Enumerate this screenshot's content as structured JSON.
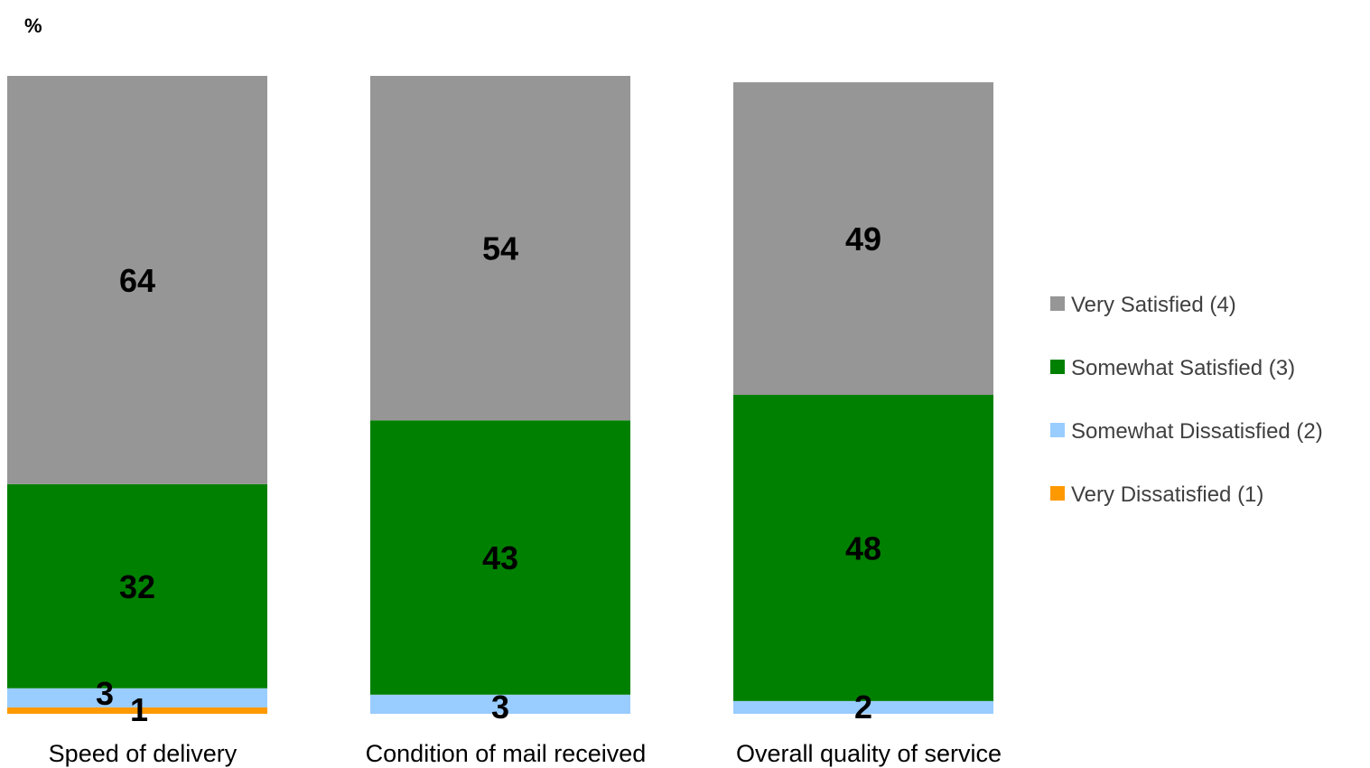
{
  "chart_data": {
    "type": "bar",
    "stacked": true,
    "unit_label": "%",
    "categories": [
      "Speed of delivery",
      "Condition of mail received",
      "Overall quality of service"
    ],
    "series": [
      {
        "name": "Very Dissatisfied (1)",
        "color": "#FF9900",
        "values": [
          1,
          0,
          0
        ]
      },
      {
        "name": "Somewhat Dissatisfied (2)",
        "color": "#99CCFF",
        "values": [
          3,
          3,
          2
        ]
      },
      {
        "name": "Somewhat Satisfied (3)",
        "color": "#008000",
        "values": [
          32,
          43,
          48
        ]
      },
      {
        "name": "Very Satisfied (4)",
        "color": "#969696",
        "values": [
          64,
          54,
          49
        ]
      }
    ],
    "legend_order": [
      "Very Satisfied (4)",
      "Somewhat Satisfied (3)",
      "Somewhat Dissatisfied (2)",
      "Very Dissatisfied (1)"
    ],
    "legend_position": "right",
    "ylim": [
      0,
      100
    ],
    "grid": false
  }
}
